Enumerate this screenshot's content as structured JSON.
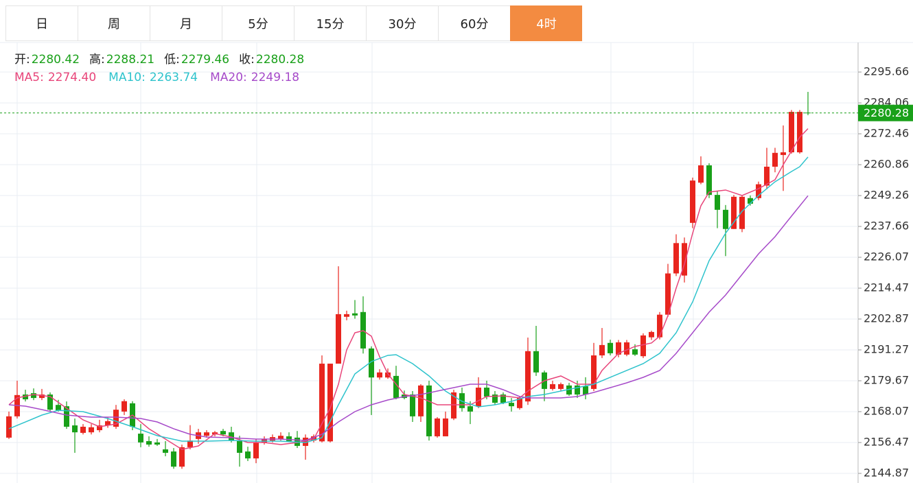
{
  "tabs": {
    "items": [
      "日",
      "周",
      "月",
      "5分",
      "15分",
      "30分",
      "60分",
      "4时"
    ],
    "active": 7
  },
  "chart_data": {
    "type": "candlestick",
    "ohlc_labels": [
      "开:",
      "高:",
      "低:",
      "收:"
    ],
    "up_color": "#e8251e",
    "down_color": "#19a019",
    "last_price_color": "#19a019",
    "ylim": [
      2141.26,
      2306.75
    ],
    "yticks": [
      2144.87,
      2156.47,
      2168.07,
      2179.67,
      2191.27,
      2202.87,
      2214.47,
      2226.07,
      2237.66,
      2249.26,
      2260.86,
      2272.46,
      2284.06,
      2295.66
    ],
    "grid": true,
    "open": [
      2158.3,
      2166.3,
      2174.5,
      2175.0,
      2173.2,
      2174.5,
      2170.6,
      2170.1,
      2162.9,
      2160.1,
      2160.3,
      2161.1,
      2162.9,
      2162.4,
      2168.1,
      2171.2,
      2159.8,
      2157.0,
      2156.5,
      2153.9,
      2153.1,
      2147.4,
      2154.7,
      2157.8,
      2159.0,
      2159.5,
      2160.8,
      2160.3,
      2157.2,
      2153.1,
      2150.5,
      2156.5,
      2157.2,
      2157.8,
      2158.8,
      2158.3,
      2155.2,
      2157.2,
      2156.9,
      2156.9,
      2186.1,
      2203.7,
      2205.0,
      2205.5,
      2191.8,
      2180.9,
      2180.9,
      2181.5,
      2174.5,
      2174.5,
      2166.3,
      2177.9,
      2158.8,
      2158.8,
      2165.5,
      2175.0,
      2170.1,
      2170.1,
      2177.1,
      2174.5,
      2174.5,
      2171.4,
      2169.4,
      2171.9,
      2190.8,
      2182.8,
      2176.6,
      2176.6,
      2177.9,
      2177.9,
      2177.6,
      2176.6,
      2189.2,
      2193.9,
      2189.5,
      2189.5,
      2191.5,
      2188.9,
      2196.0,
      2196.0,
      2204.5,
      2220.0,
      2219.2,
      2239.0,
      2254.1,
      2260.6,
      2249.5,
      2243.9,
      2236.7,
      2236.7,
      2248.3,
      2248.3,
      2253.0,
      2260.1,
      2264.5,
      2265.5,
      2265.5,
      2280.42
    ],
    "high": [
      2168.1,
      2179.7,
      2176.3,
      2176.8,
      2176.6,
      2175.3,
      2172.5,
      2171.9,
      2165.5,
      2163.4,
      2163.4,
      2165.0,
      2166.0,
      2170.6,
      2172.7,
      2172.0,
      2163.4,
      2158.8,
      2157.8,
      2157.0,
      2154.4,
      2155.7,
      2163.0,
      2161.6,
      2161.1,
      2160.8,
      2161.6,
      2162.4,
      2159.0,
      2154.9,
      2157.8,
      2158.8,
      2159.5,
      2160.3,
      2160.3,
      2160.8,
      2159.5,
      2159.5,
      2189.2,
      2186.1,
      2222.7,
      2206.0,
      2210.0,
      2211.4,
      2192.6,
      2184.0,
      2184.3,
      2185.3,
      2176.0,
      2175.8,
      2178.4,
      2179.7,
      2166.0,
      2168.1,
      2176.3,
      2177.1,
      2172.0,
      2181.0,
      2179.7,
      2175.8,
      2175.3,
      2173.2,
      2174.0,
      2195.9,
      2200.3,
      2183.5,
      2179.7,
      2179.0,
      2178.9,
      2179.7,
      2181.0,
      2193.9,
      2199.5,
      2195.1,
      2195.0,
      2195.0,
      2193.4,
      2197.5,
      2198.5,
      2205.5,
      2223.6,
      2234.7,
      2233.5,
      2256.0,
      2264.0,
      2261.4,
      2251.0,
      2245.7,
      2249.5,
      2249.5,
      2249.3,
      2254.5,
      2267.2,
      2267.2,
      2275.6,
      2281.4,
      2281.4,
      2288.21
    ],
    "low": [
      2157.8,
      2165.5,
      2171.9,
      2172.4,
      2172.4,
      2168.1,
      2168.1,
      2161.6,
      2152.6,
      2159.5,
      2159.5,
      2160.3,
      2162.0,
      2161.6,
      2166.8,
      2161.1,
      2154.7,
      2154.9,
      2155.2,
      2151.3,
      2146.6,
      2146.6,
      2153.9,
      2156.0,
      2158.3,
      2158.8,
      2158.8,
      2156.5,
      2147.4,
      2149.5,
      2148.7,
      2155.7,
      2156.5,
      2157.2,
      2156.7,
      2154.4,
      2150.0,
      2156.5,
      2156.5,
      2156.5,
      2186.1,
      2202.4,
      2203.0,
      2189.9,
      2166.8,
      2180.1,
      2180.4,
      2172.7,
      2172.7,
      2164.2,
      2164.2,
      2157.2,
      2158.3,
      2158.8,
      2164.9,
      2168.1,
      2163.4,
      2169.4,
      2172.7,
      2170.6,
      2170.9,
      2168.1,
      2168.8,
      2170.6,
      2181.5,
      2172.0,
      2176.0,
      2176.0,
      2174.0,
      2173.2,
      2172.7,
      2175.8,
      2188.2,
      2189.2,
      2188.5,
      2188.9,
      2189.0,
      2188.2,
      2195.0,
      2195.2,
      2203.7,
      2219.0,
      2216.6,
      2237.0,
      2253.5,
      2248.3,
      2237.0,
      2226.5,
      2236.7,
      2235.5,
      2245.5,
      2247.5,
      2251.6,
      2258.0,
      2251.0,
      2265.0,
      2265.0,
      2279.46
    ],
    "close": [
      2166.3,
      2174.3,
      2172.7,
      2173.2,
      2174.5,
      2168.8,
      2168.6,
      2162.4,
      2160.3,
      2162.4,
      2162.2,
      2162.9,
      2164.5,
      2168.8,
      2172.0,
      2162.4,
      2156.5,
      2155.7,
      2155.7,
      2152.6,
      2147.4,
      2154.7,
      2157.2,
      2160.3,
      2160.3,
      2160.3,
      2159.5,
      2157.2,
      2152.6,
      2150.5,
      2156.5,
      2157.8,
      2158.5,
      2159.0,
      2157.0,
      2155.2,
      2158.3,
      2158.8,
      2186.1,
      2186.1,
      2204.7,
      2204.7,
      2204.2,
      2191.8,
      2180.9,
      2182.8,
      2182.8,
      2173.2,
      2173.2,
      2166.3,
      2177.9,
      2158.8,
      2165.5,
      2165.5,
      2175.3,
      2169.4,
      2168.1,
      2177.1,
      2173.7,
      2171.4,
      2171.4,
      2170.1,
      2173.2,
      2190.8,
      2182.8,
      2176.6,
      2178.4,
      2178.4,
      2174.5,
      2174.5,
      2174.5,
      2189.2,
      2193.1,
      2190.0,
      2194.1,
      2194.1,
      2189.5,
      2196.7,
      2198.0,
      2204.5,
      2220.0,
      2231.4,
      2231.4,
      2254.9,
      2260.6,
      2249.5,
      2243.9,
      2236.7,
      2248.8,
      2248.8,
      2246.2,
      2253.5,
      2260.1,
      2265.3,
      2265.5,
      2280.7,
      2280.7,
      2280.28
    ],
    "series": [
      {
        "name": "MA5:",
        "color": "#e8457a",
        "value_label": "2274.40",
        "x": [
          0,
          1,
          3,
          5,
          7,
          9,
          11,
          13,
          15,
          17,
          19,
          21,
          23,
          25,
          27,
          29,
          31,
          33,
          35,
          37,
          39,
          40,
          41,
          42,
          43,
          44,
          45,
          46,
          47,
          48,
          50,
          52,
          54,
          56,
          58,
          60,
          62,
          63,
          65,
          67,
          69,
          71,
          72,
          74,
          76,
          78,
          79,
          80,
          81,
          82,
          83,
          84,
          85,
          87,
          89,
          90,
          91,
          93,
          94,
          95,
          96,
          97
        ],
        "values": [
          2170.65,
          2173.23,
          2174.52,
          2173.74,
          2169.36,
          2164.98,
          2162.4,
          2163.43,
          2166.78,
          2161.63,
          2157.76,
          2153.89,
          2155.18,
          2159.82,
          2158.53,
          2156.47,
          2156.47,
          2155.7,
          2156.47,
          2157.76,
          2169.36,
          2178.38,
          2191.27,
          2197.72,
          2198.49,
          2196.43,
          2188.69,
          2182.25,
          2178.38,
          2174.52,
          2173.23,
          2170.65,
          2170.65,
          2170.65,
          2173.74,
          2174.0,
          2173.23,
          2175.8,
          2179.67,
          2181.48,
          2178.38,
          2178.38,
          2183.54,
          2189.98,
          2192.56,
          2193.85,
          2196.43,
          2204.16,
          2214.47,
          2223.5,
          2235.1,
          2245.41,
          2250.57,
          2251.34,
          2249.28,
          2250.57,
          2251.86,
          2255.2,
          2260.88,
          2266.03,
          2271.19,
          2274.4
        ]
      },
      {
        "name": "MA10:",
        "color": "#2ec3cc",
        "value_label": "2263.74",
        "x": [
          0,
          2,
          4,
          6,
          9,
          12,
          15,
          18,
          21,
          24,
          27,
          30,
          33,
          36,
          38,
          40,
          42,
          44,
          46,
          47,
          49,
          51,
          53,
          55,
          57,
          59,
          61,
          63,
          65,
          67,
          69,
          71,
          73,
          75,
          77,
          79,
          81,
          83,
          85,
          87,
          89,
          91,
          93,
          95,
          96,
          97
        ],
        "values": [
          2161.63,
          2164.2,
          2166.78,
          2168.59,
          2168.07,
          2165.49,
          2162.4,
          2159.05,
          2156.99,
          2156.99,
          2157.24,
          2156.99,
          2156.99,
          2156.47,
          2158.27,
          2170.65,
          2182.25,
          2186.89,
          2189.21,
          2189.47,
          2186.12,
          2181.48,
          2175.8,
          2171.94,
          2169.87,
          2170.65,
          2171.94,
          2173.74,
          2174.52,
          2175.8,
          2177.09,
          2178.38,
          2180.96,
          2183.54,
          2186.12,
          2189.98,
          2197.72,
          2209.32,
          2224.79,
          2235.1,
          2243.35,
          2249.28,
          2254.43,
          2258.3,
          2260.1,
          2263.74
        ]
      },
      {
        "name": "MA20:",
        "color": "#a64ac9",
        "value_label": "2249.18",
        "x": [
          0,
          2,
          4,
          7,
          10,
          13,
          16,
          18,
          20,
          22,
          24,
          27,
          30,
          33,
          36,
          38,
          40,
          42,
          44,
          46,
          48,
          50,
          52,
          54,
          56,
          58,
          60,
          62,
          63,
          65,
          67,
          69,
          71,
          73,
          75,
          77,
          79,
          81,
          83,
          85,
          87,
          89,
          91,
          93,
          95,
          97
        ],
        "values": [
          2170.65,
          2170.13,
          2168.84,
          2166.78,
          2166.01,
          2166.01,
          2165.49,
          2164.2,
          2161.63,
          2159.56,
          2158.53,
          2158.27,
          2157.76,
          2157.76,
          2157.24,
          2159.56,
          2164.2,
          2168.07,
          2170.65,
          2172.45,
          2173.74,
          2174.52,
          2175.8,
          2177.09,
          2178.38,
          2178.38,
          2176.32,
          2173.74,
          2173.23,
          2173.23,
          2173.23,
          2173.74,
          2175.29,
          2177.09,
          2178.9,
          2180.96,
          2183.54,
          2189.98,
          2197.72,
          2205.45,
          2211.9,
          2219.63,
          2227.36,
          2233.81,
          2241.54,
          2249.18
        ]
      }
    ]
  }
}
